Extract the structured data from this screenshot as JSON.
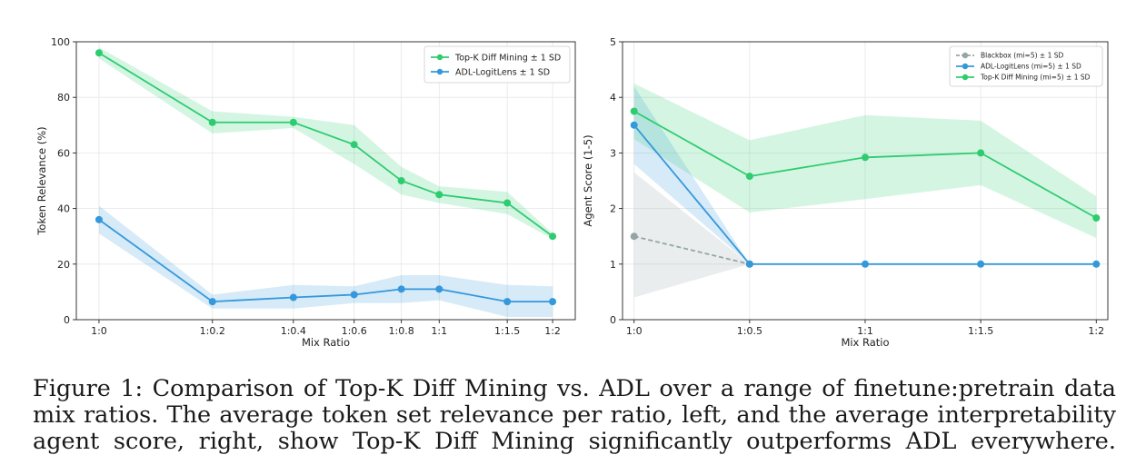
{
  "caption": "Figure 1: Comparison of Top-K Diff Mining vs. ADL over a range of finetune:pretrain data mix ratios. The average token set relevance per ratio, left, and the average interpretability agent score, right, show Top-K Diff Mining significantly outperforms ADL everywhere.",
  "colors": {
    "green": "#2ecc71",
    "blue": "#3498db",
    "gray": "#95a5a6"
  },
  "chart_data": [
    {
      "type": "line",
      "xlabel": "Mix Ratio",
      "ylabel": "Token Relevance (%)",
      "categories": [
        "1:0",
        "1:0.2",
        "1:0.4",
        "1:0.6",
        "1:0.8",
        "1:1",
        "1:1.5",
        "1:2"
      ],
      "x": [
        1.0,
        0.8333,
        0.7143,
        0.625,
        0.5556,
        0.5,
        0.4,
        0.3333
      ],
      "xlim": [
        1.0333,
        0.3
      ],
      "ylim": [
        0,
        100
      ],
      "yticks": [
        0,
        20,
        40,
        60,
        80,
        100
      ],
      "grid": true,
      "legend": "top-right",
      "series": [
        {
          "name": "Top-K Diff Mining ± 1 SD",
          "color": "#2ecc71",
          "values": [
            96,
            71,
            71,
            63,
            50,
            45,
            42,
            30
          ],
          "lower": [
            94,
            67,
            69,
            56,
            45,
            42,
            38,
            29
          ],
          "upper": [
            98,
            75,
            73,
            70,
            55,
            48,
            46,
            31
          ]
        },
        {
          "name": "ADL-LogitLens ± 1 SD",
          "color": "#3498db",
          "values": [
            36,
            6.5,
            8,
            9,
            11,
            11,
            6.5,
            6.5
          ],
          "lower": [
            31,
            4,
            4,
            6,
            6,
            7,
            1,
            1
          ],
          "upper": [
            41,
            9,
            12.5,
            12,
            16,
            16,
            12.5,
            12
          ]
        }
      ]
    },
    {
      "type": "line",
      "xlabel": "Mix Ratio",
      "ylabel": "Agent Score (1-5)",
      "categories": [
        "1:0",
        "1:0.5",
        "1:1",
        "1:1.5",
        "1:2"
      ],
      "x": [
        0,
        1,
        2,
        3,
        4
      ],
      "xlim": [
        -0.1,
        4.1
      ],
      "ylim": [
        0,
        5
      ],
      "yticks": [
        0,
        1,
        2,
        3,
        4,
        5
      ],
      "grid": true,
      "legend": "top-right",
      "series": [
        {
          "name": "Blackbox (mi=5) ± 1 SD",
          "color": "#95a5a6",
          "dashed": true,
          "x": [
            0,
            1
          ],
          "values": [
            1.5,
            1.0
          ],
          "lower": [
            0.4,
            1.0
          ],
          "upper": [
            2.65,
            1.0
          ]
        },
        {
          "name": "ADL-LogitLens (mi=5) ± 1 SD",
          "color": "#3498db",
          "values": [
            3.5,
            1,
            1,
            1,
            1
          ],
          "lower": [
            2.8,
            1,
            1,
            1,
            1
          ],
          "upper": [
            4.2,
            1,
            1,
            1,
            1
          ]
        },
        {
          "name": "Top-K Diff Mining (mi=5) ± 1 SD",
          "color": "#2ecc71",
          "values": [
            3.75,
            2.58,
            2.92,
            3.0,
            1.83
          ],
          "lower": [
            3.25,
            1.93,
            2.17,
            2.42,
            1.47
          ],
          "upper": [
            4.25,
            3.23,
            3.68,
            3.58,
            2.22
          ]
        }
      ]
    }
  ]
}
